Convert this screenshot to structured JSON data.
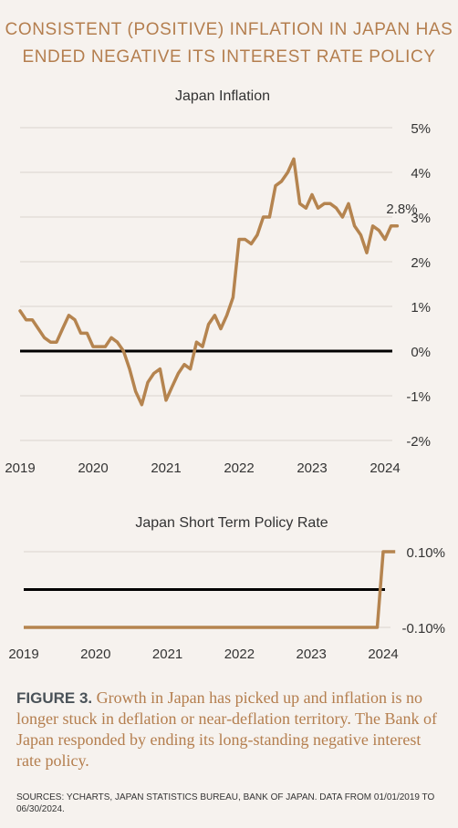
{
  "headline": {
    "line1": "CONSISTENT (POSITIVE) INFLATION IN JAPAN HAS",
    "line2": "ENDED NEGATIVE ITS INTEREST RATE POLICY"
  },
  "caption": {
    "figure_label": "FIGURE 3.",
    "text": " Growth in Japan has picked up and inflation is no longer stuck in deflation or near-deflation territory. The Bank of Japan responded by ending its long-standing negative interest rate policy."
  },
  "sources": "SOURCES: YCHARTS, JAPAN STATISTICS BUREAU, BANK OF JAPAN. DATA FROM 01/01/2019 TO 06/30/2024.",
  "colors": {
    "line": "#b5844f",
    "zero": "#000000",
    "grid": "#d9d4cf",
    "text": "#333333",
    "accent": "#b47e4e"
  },
  "chart_data": [
    {
      "type": "line",
      "title": "Japan Inflation",
      "x_ticks": [
        "2019",
        "2020",
        "2021",
        "2022",
        "2023",
        "2024"
      ],
      "y_ticks": [
        "5%",
        "4%",
        "3%",
        "2%",
        "1%",
        "0%",
        "-1%",
        "-2%"
      ],
      "ylim": [
        -2,
        5
      ],
      "xlim": [
        2019.0,
        2024.0
      ],
      "annotation": "2.8%",
      "grid": true,
      "series": [
        {
          "x": [
            2019.0,
            2019.083,
            2019.167,
            2019.25,
            2019.333,
            2019.417,
            2019.5,
            2019.583,
            2019.667,
            2019.75,
            2019.833,
            2019.917,
            2020.0,
            2020.083,
            2020.167,
            2020.25,
            2020.333,
            2020.417,
            2020.5,
            2020.583,
            2020.667,
            2020.75,
            2020.833,
            2020.917,
            2021.0,
            2021.083,
            2021.167,
            2021.25,
            2021.333,
            2021.417,
            2021.5,
            2021.583,
            2021.667,
            2021.75,
            2021.833,
            2021.917,
            2022.0,
            2022.083,
            2022.167,
            2022.25,
            2022.333,
            2022.417,
            2022.5,
            2022.583,
            2022.667,
            2022.75,
            2022.833,
            2022.917,
            2023.0,
            2023.083,
            2023.167,
            2023.25,
            2023.333,
            2023.417,
            2023.5,
            2023.583,
            2023.667,
            2023.75,
            2023.833,
            2023.917,
            2024.0,
            2024.083,
            2024.167
          ],
          "y": [
            0.9,
            0.7,
            0.7,
            0.5,
            0.3,
            0.2,
            0.2,
            0.5,
            0.8,
            0.7,
            0.4,
            0.4,
            0.1,
            0.1,
            0.1,
            0.3,
            0.2,
            0.0,
            -0.4,
            -0.9,
            -1.2,
            -0.7,
            -0.5,
            -0.4,
            -1.1,
            -0.8,
            -0.5,
            -0.3,
            -0.4,
            0.2,
            0.1,
            0.6,
            0.8,
            0.5,
            0.8,
            1.2,
            2.5,
            2.5,
            2.4,
            2.6,
            3.0,
            3.0,
            3.7,
            3.8,
            4.0,
            4.3,
            3.3,
            3.2,
            3.5,
            3.2,
            3.3,
            3.3,
            3.2,
            3.0,
            3.3,
            2.8,
            2.6,
            2.2,
            2.8,
            2.7,
            2.5,
            2.8,
            2.8
          ]
        }
      ]
    },
    {
      "type": "line",
      "title": "Japan Short Term Policy Rate",
      "x_ticks": [
        "2019",
        "2020",
        "2021",
        "2022",
        "2023",
        "2024"
      ],
      "y_ticks": [
        "0.10%",
        "-0.10%"
      ],
      "ylim": [
        -0.1,
        0.1
      ],
      "xlim": [
        2019.0,
        2024.0
      ],
      "grid": true,
      "series": [
        {
          "x": [
            2019.0,
            2023.917,
            2024.0,
            2024.167
          ],
          "y": [
            -0.1,
            -0.1,
            0.1,
            0.1
          ]
        }
      ]
    }
  ]
}
